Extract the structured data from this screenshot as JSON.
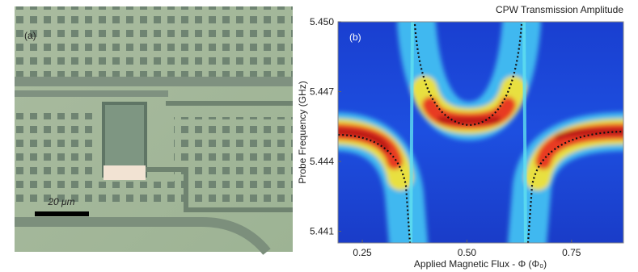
{
  "panel_a": {
    "label": "(a)",
    "scale_bar": "20 μm"
  },
  "chart_data": {
    "type": "heatmap",
    "title": "CPW Transmission Amplitude",
    "panel_label": "(b)",
    "x_label": "Applied Magnetic Flux - Φ (Φ₀)",
    "y_label": "Probe Frequency (GHz)",
    "xlim": [
      0.192,
      0.874
    ],
    "ylim": [
      5.4405,
      5.45
    ],
    "xticks": [
      {
        "value": 0.25,
        "label": "0.25"
      },
      {
        "value": 0.5,
        "label": "0.50"
      },
      {
        "value": 0.75,
        "label": "0.75"
      }
    ],
    "yticks": [
      {
        "value": 5.45,
        "label": "5.450"
      },
      {
        "value": 5.447,
        "label": "5.447"
      },
      {
        "value": 5.444,
        "label": "5.444"
      },
      {
        "value": 5.441,
        "label": "5.441"
      }
    ]
  }
}
